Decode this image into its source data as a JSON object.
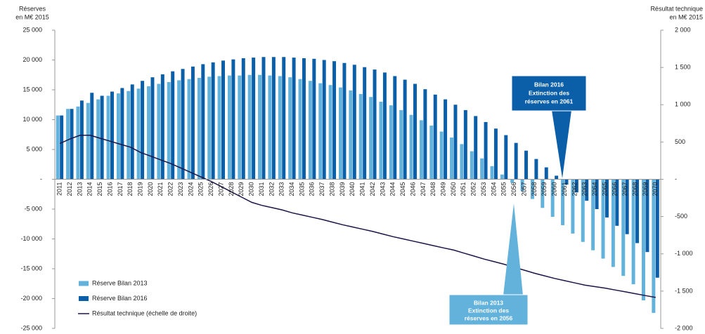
{
  "chart_data": {
    "type": "bar",
    "y_label": [
      "Réserves",
      "en M€ 2015"
    ],
    "y2_label": [
      "Résultat technique",
      "en M€ 2015"
    ],
    "categories": [
      "2011",
      "2012",
      "2013",
      "2014",
      "2015",
      "2016",
      "2017",
      "2018",
      "2019",
      "2020",
      "2021",
      "2022",
      "2023",
      "2024",
      "2025",
      "2026",
      "2027",
      "2028",
      "2029",
      "2030",
      "2031",
      "2032",
      "2033",
      "2034",
      "2035",
      "2036",
      "2037",
      "2038",
      "2039",
      "2040",
      "2041",
      "2042",
      "2043",
      "2044",
      "2045",
      "2046",
      "2047",
      "2048",
      "2049",
      "2050",
      "2051",
      "2052",
      "2053",
      "2054",
      "2055",
      "2056",
      "2057",
      "2058",
      "2059",
      "2060",
      "2061",
      "2062",
      "2063",
      "2064",
      "2065",
      "2066",
      "2067",
      "2068",
      "2069",
      "2070"
    ],
    "series": [
      {
        "name": "Réserve Bilan 2013",
        "type": "bar",
        "color": "#62b2dc",
        "values": [
          10700,
          11800,
          12200,
          12800,
          13400,
          14000,
          14400,
          14800,
          15200,
          15600,
          16000,
          16300,
          16600,
          16800,
          17000,
          17200,
          17300,
          17400,
          17400,
          17500,
          17500,
          17400,
          17300,
          17100,
          16800,
          16500,
          16100,
          15800,
          15400,
          14900,
          14300,
          13800,
          13000,
          12400,
          11600,
          10800,
          9900,
          9000,
          8000,
          7000,
          5900,
          4700,
          3500,
          2200,
          800,
          -600,
          -2000,
          -3300,
          -4800,
          -6300,
          -7700,
          -9100,
          -10500,
          -11900,
          -13300,
          -14700,
          -16200,
          -17600,
          -20300,
          -22400
        ]
      },
      {
        "name": "Réserve Bilan 2016",
        "type": "bar",
        "color": "#0b5ea8",
        "values": [
          10700,
          11800,
          13200,
          14500,
          14000,
          14700,
          15300,
          15900,
          16500,
          17100,
          17600,
          18100,
          18500,
          18900,
          19300,
          19600,
          19900,
          20100,
          20300,
          20400,
          20500,
          20500,
          20500,
          20400,
          20300,
          20200,
          20000,
          19800,
          19500,
          19200,
          18800,
          18400,
          17900,
          17300,
          16700,
          16000,
          15100,
          14200,
          13400,
          12500,
          11600,
          10600,
          9600,
          8500,
          7400,
          6100,
          4800,
          3400,
          2000,
          600,
          -900,
          -2200,
          -3600,
          -5000,
          -6400,
          -7800,
          -9200,
          -10700,
          -12200,
          -16500
        ]
      },
      {
        "name": "Résultat technique (échelle de droite)",
        "type": "line",
        "axis": "y2",
        "color": "#1b1548",
        "values": [
          480,
          540,
          590,
          590,
          550,
          510,
          470,
          430,
          360,
          310,
          260,
          210,
          150,
          90,
          30,
          -30,
          -100,
          -170,
          -240,
          -310,
          -350,
          -380,
          -410,
          -450,
          -480,
          -510,
          -540,
          -575,
          -610,
          -640,
          -670,
          -700,
          -735,
          -770,
          -800,
          -830,
          -860,
          -890,
          -920,
          -950,
          -990,
          -1030,
          -1070,
          -1105,
          -1140,
          -1180,
          -1220,
          -1260,
          -1295,
          -1330,
          -1360,
          -1390,
          -1420,
          -1440,
          -1460,
          -1485,
          -1510,
          -1535,
          -1560,
          -1585
        ]
      }
    ],
    "ylim": [
      -25000,
      25000
    ],
    "yticks": [
      {
        "value": -25000,
        "label": "-25 000"
      },
      {
        "value": -20000,
        "label": "-20 000"
      },
      {
        "value": -15000,
        "label": "-15 000"
      },
      {
        "value": -10000,
        "label": "-10 000"
      },
      {
        "value": -5000,
        "label": "-5 000"
      },
      {
        "value": 0,
        "label": "-"
      },
      {
        "value": 5000,
        "label": "5 000"
      },
      {
        "value": 10000,
        "label": "10 000"
      },
      {
        "value": 15000,
        "label": "15 000"
      },
      {
        "value": 20000,
        "label": "20 000"
      },
      {
        "value": 25000,
        "label": "25 000"
      }
    ],
    "y2lim": [
      -2000,
      2000
    ],
    "y2ticks": [
      {
        "value": -2000,
        "label": "-2 000"
      },
      {
        "value": -1500,
        "label": "-1 500"
      },
      {
        "value": -1000,
        "label": "-1 000"
      },
      -500,
      {
        "value": 0,
        "label": "-"
      },
      500,
      {
        "value": 1000,
        "label": "1 000"
      },
      {
        "value": 1500,
        "label": "1 500"
      },
      {
        "value": 2000,
        "label": "2 000"
      }
    ],
    "annotations": [
      [
        "Bilan 2016",
        "Extinction des",
        "réserves en 2061"
      ],
      [
        "Bilan 2013",
        "Extinction des",
        "réserves en 2056"
      ]
    ]
  }
}
